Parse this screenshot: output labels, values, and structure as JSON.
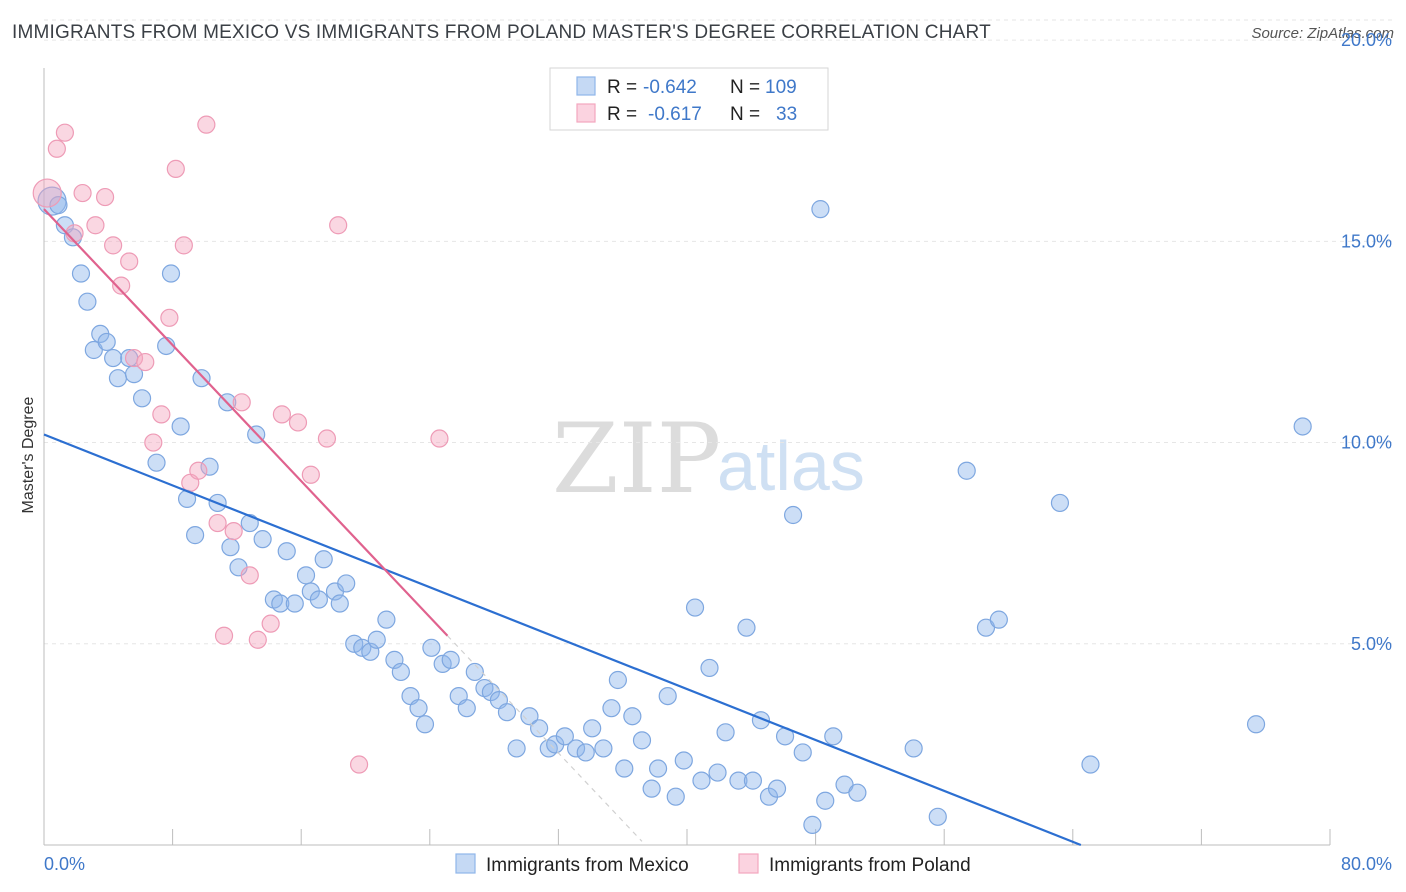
{
  "title": "IMMIGRANTS FROM MEXICO VS IMMIGRANTS FROM POLAND MASTER'S DEGREE CORRELATION CHART",
  "source": "Source: ZipAtlas.com",
  "watermark": {
    "zip": "ZIP",
    "atlas": "atlas"
  },
  "colors": {
    "mexico": "#8fb6ea",
    "mexico_line": "#2c6fd1",
    "poland": "#f4a7bf",
    "poland_line": "#e0628e",
    "tick": "#3f78c9"
  },
  "legend": {
    "rows": [
      {
        "r_label": "R = ",
        "r_value": "-0.642",
        "n_label": "N = ",
        "n_value": "109"
      },
      {
        "r_label": "R = ",
        "r_value": "-0.617",
        "n_label": "N = ",
        "n_value": "33"
      }
    ]
  },
  "chart_data": {
    "type": "scatter",
    "title": "IMMIGRANTS FROM MEXICO VS IMMIGRANTS FROM POLAND MASTER'S DEGREE CORRELATION CHART",
    "xlabel": "",
    "ylabel": "Master's Degree",
    "xlim": [
      0,
      80
    ],
    "ylim": [
      0,
      20.5
    ],
    "x_tick_labels": [
      "0.0%",
      "80.0%"
    ],
    "y_ticks": [
      5,
      10,
      15,
      20
    ],
    "y_tick_labels": [
      "5.0%",
      "10.0%",
      "15.0%",
      "20.0%"
    ],
    "grid": true,
    "legend_position": "top-center",
    "series": [
      {
        "name": "Immigrants from Mexico",
        "trend": [
          [
            0,
            10.2
          ],
          [
            64.5,
            0
          ]
        ],
        "points": [
          [
            0.5,
            16.0,
            2
          ],
          [
            0.9,
            15.9,
            1
          ],
          [
            1.3,
            15.4,
            1
          ],
          [
            1.8,
            15.1,
            1
          ],
          [
            2.3,
            14.2,
            1
          ],
          [
            2.7,
            13.5,
            1
          ],
          [
            3.1,
            12.3,
            1
          ],
          [
            3.5,
            12.7,
            1
          ],
          [
            3.9,
            12.5,
            1
          ],
          [
            4.3,
            12.1,
            1
          ],
          [
            4.6,
            11.6,
            1
          ],
          [
            5.3,
            12.1,
            1
          ],
          [
            5.6,
            11.7,
            1
          ],
          [
            6.1,
            11.1,
            1
          ],
          [
            7.6,
            12.4,
            1
          ],
          [
            7.9,
            14.2,
            1
          ],
          [
            8.5,
            10.4,
            1
          ],
          [
            7.0,
            9.5,
            1
          ],
          [
            8.9,
            8.6,
            1
          ],
          [
            9.4,
            7.7,
            1
          ],
          [
            10.3,
            9.4,
            1
          ],
          [
            10.8,
            8.5,
            1
          ],
          [
            9.8,
            11.6,
            1
          ],
          [
            11.4,
            11.0,
            1
          ],
          [
            11.6,
            7.4,
            1
          ],
          [
            12.1,
            6.9,
            1
          ],
          [
            12.8,
            8.0,
            1
          ],
          [
            13.2,
            10.2,
            1
          ],
          [
            13.6,
            7.6,
            1
          ],
          [
            14.3,
            6.1,
            1
          ],
          [
            14.7,
            6.0,
            1
          ],
          [
            15.1,
            7.3,
            1
          ],
          [
            15.6,
            6.0,
            1
          ],
          [
            16.3,
            6.7,
            1
          ],
          [
            16.6,
            6.3,
            1
          ],
          [
            17.1,
            6.1,
            1
          ],
          [
            17.4,
            7.1,
            1
          ],
          [
            18.1,
            6.3,
            1
          ],
          [
            18.4,
            6.0,
            1
          ],
          [
            18.8,
            6.5,
            1
          ],
          [
            19.3,
            5.0,
            1
          ],
          [
            19.8,
            4.9,
            1
          ],
          [
            20.3,
            4.8,
            1
          ],
          [
            20.7,
            5.1,
            1
          ],
          [
            21.3,
            5.6,
            1
          ],
          [
            21.8,
            4.6,
            1
          ],
          [
            22.2,
            4.3,
            1
          ],
          [
            22.8,
            3.7,
            1
          ],
          [
            23.3,
            3.4,
            1
          ],
          [
            23.7,
            3.0,
            1
          ],
          [
            24.1,
            4.9,
            1
          ],
          [
            24.8,
            4.5,
            1
          ],
          [
            25.3,
            4.6,
            1
          ],
          [
            25.8,
            3.7,
            1
          ],
          [
            26.3,
            3.4,
            1
          ],
          [
            26.8,
            4.3,
            1
          ],
          [
            27.4,
            3.9,
            1
          ],
          [
            27.8,
            3.8,
            1
          ],
          [
            28.3,
            3.6,
            1
          ],
          [
            28.8,
            3.3,
            1
          ],
          [
            29.4,
            2.4,
            1
          ],
          [
            30.2,
            3.2,
            1
          ],
          [
            30.8,
            2.9,
            1
          ],
          [
            31.4,
            2.4,
            1
          ],
          [
            31.8,
            2.5,
            1
          ],
          [
            32.4,
            2.7,
            1
          ],
          [
            33.1,
            2.4,
            1
          ],
          [
            33.7,
            2.3,
            1
          ],
          [
            34.1,
            2.9,
            1
          ],
          [
            34.8,
            2.4,
            1
          ],
          [
            35.3,
            3.4,
            1
          ],
          [
            35.7,
            4.1,
            1
          ],
          [
            36.1,
            1.9,
            1
          ],
          [
            36.6,
            3.2,
            1
          ],
          [
            37.2,
            2.6,
            1
          ],
          [
            37.8,
            1.4,
            1
          ],
          [
            38.2,
            1.9,
            1
          ],
          [
            38.8,
            3.7,
            1
          ],
          [
            39.3,
            1.2,
            1
          ],
          [
            39.8,
            2.1,
            1
          ],
          [
            40.5,
            5.9,
            1
          ],
          [
            40.9,
            1.6,
            1
          ],
          [
            41.4,
            4.4,
            1
          ],
          [
            41.9,
            1.8,
            1
          ],
          [
            42.4,
            2.8,
            1
          ],
          [
            43.2,
            1.6,
            1
          ],
          [
            43.7,
            5.4,
            1
          ],
          [
            44.1,
            1.6,
            1
          ],
          [
            44.6,
            3.1,
            1
          ],
          [
            45.1,
            1.2,
            1
          ],
          [
            45.6,
            1.4,
            1
          ],
          [
            46.1,
            2.7,
            1
          ],
          [
            46.6,
            8.2,
            1
          ],
          [
            47.2,
            2.3,
            1
          ],
          [
            47.8,
            0.5,
            1
          ],
          [
            48.3,
            15.8,
            1
          ],
          [
            48.6,
            1.1,
            1
          ],
          [
            49.1,
            2.7,
            1
          ],
          [
            49.8,
            1.5,
            1
          ],
          [
            50.6,
            1.3,
            1
          ],
          [
            54.1,
            2.4,
            1
          ],
          [
            55.6,
            0.7,
            1
          ],
          [
            57.4,
            9.3,
            1
          ],
          [
            58.6,
            5.4,
            1
          ],
          [
            59.4,
            5.6,
            1
          ],
          [
            63.2,
            8.5,
            1
          ],
          [
            65.1,
            2.0,
            1
          ],
          [
            75.4,
            3.0,
            1
          ],
          [
            78.3,
            10.4,
            1
          ]
        ]
      },
      {
        "name": "Immigrants from Poland",
        "trend": [
          [
            0,
            15.8
          ],
          [
            25.1,
            5.2
          ]
        ],
        "points": [
          [
            0.2,
            16.2,
            2
          ],
          [
            0.8,
            17.3,
            1
          ],
          [
            1.3,
            17.7,
            1
          ],
          [
            1.9,
            15.2,
            1
          ],
          [
            2.4,
            16.2,
            1
          ],
          [
            3.2,
            15.4,
            1
          ],
          [
            3.8,
            16.1,
            1
          ],
          [
            4.3,
            14.9,
            1
          ],
          [
            4.8,
            13.9,
            1
          ],
          [
            5.3,
            14.5,
            1
          ],
          [
            5.6,
            12.1,
            1
          ],
          [
            6.3,
            12.0,
            1
          ],
          [
            6.8,
            10.0,
            1
          ],
          [
            7.3,
            10.7,
            1
          ],
          [
            7.8,
            13.1,
            1
          ],
          [
            8.2,
            16.8,
            1
          ],
          [
            8.7,
            14.9,
            1
          ],
          [
            9.1,
            9.0,
            1
          ],
          [
            9.6,
            9.3,
            1
          ],
          [
            10.1,
            17.9,
            1
          ],
          [
            10.8,
            8.0,
            1
          ],
          [
            11.2,
            5.2,
            1
          ],
          [
            11.8,
            7.8,
            1
          ],
          [
            12.3,
            11.0,
            1
          ],
          [
            12.8,
            6.7,
            1
          ],
          [
            13.3,
            5.1,
            1
          ],
          [
            14.1,
            5.5,
            1
          ],
          [
            14.8,
            10.7,
            1
          ],
          [
            15.8,
            10.5,
            1
          ],
          [
            16.6,
            9.2,
            1
          ],
          [
            17.6,
            10.1,
            1
          ],
          [
            18.3,
            15.4,
            1
          ],
          [
            19.6,
            2.0,
            1
          ],
          [
            24.6,
            10.1,
            1
          ]
        ]
      }
    ]
  },
  "bottom_legend": [
    "Immigrants from Mexico",
    "Immigrants from Poland"
  ]
}
